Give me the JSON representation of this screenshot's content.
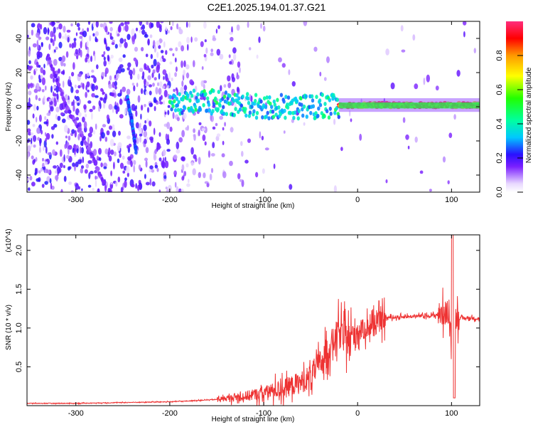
{
  "title": "C2E1.2025.194.01.37.G21",
  "chart_data": [
    {
      "type": "heatmap",
      "xlabel": "Height of straight line (km)",
      "ylabel": "Frequency (Hz)",
      "xlim": [
        -352,
        130
      ],
      "ylim": [
        -50,
        50
      ],
      "xticks": [
        -300,
        -200,
        -100,
        0,
        100
      ],
      "yticks": [
        -40,
        -20,
        0,
        20,
        40
      ],
      "colorbar": {
        "label": "Normalized spectral amplitude",
        "range": [
          0,
          1
        ],
        "ticks": [
          0.0,
          0.2,
          0.4,
          0.6,
          0.8
        ],
        "tick_labels": [
          "0.0",
          "0.2",
          "0.4",
          "0.6",
          "0.8"
        ]
      },
      "tracks": [
        {
          "x": [
            -330,
            -310,
            -290,
            -270
          ],
          "y": [
            30,
            0,
            -20,
            -45
          ],
          "amplitude": 0.15
        },
        {
          "x": [
            -245,
            -240,
            -236
          ],
          "y": [
            5,
            -10,
            -26
          ],
          "amplitude": 0.25
        },
        {
          "x": [
            -200,
            -150,
            -100,
            -50,
            -20
          ],
          "y": [
            2,
            3,
            0,
            0,
            1
          ],
          "amplitude": 0.35
        },
        {
          "x": [
            -20,
            0,
            50,
            100,
            130
          ],
          "y": [
            1,
            1,
            1,
            1,
            1
          ],
          "amplitude": 0.85
        }
      ]
    },
    {
      "type": "line",
      "xlabel": "Height of straight line (km)",
      "ylabel": "SNR (10 * v/v)",
      "y_multiplier": "(x10^4)",
      "xlim": [
        -352,
        130
      ],
      "ylim": [
        0,
        2.2
      ],
      "xticks": [
        -300,
        -200,
        -100,
        0,
        100
      ],
      "yticks": [
        0.5,
        1.0,
        1.5,
        2.0
      ],
      "yticklabels": [
        "0.5",
        "1.0",
        "1.5",
        "2.0"
      ],
      "series": [
        {
          "color": "#ee3333",
          "x": [
            -352,
            -300,
            -250,
            -200,
            -180,
            -150,
            -120,
            -100,
            -80,
            -60,
            -50,
            -40,
            -30,
            -20,
            -10,
            0,
            10,
            20,
            30,
            40,
            60,
            80,
            90,
            95,
            100,
            103,
            105,
            110,
            120,
            130
          ],
          "y": [
            0.03,
            0.03,
            0.04,
            0.05,
            0.06,
            0.08,
            0.12,
            0.16,
            0.22,
            0.3,
            0.38,
            0.55,
            0.75,
            0.95,
            0.85,
            0.95,
            1.0,
            1.05,
            1.13,
            1.14,
            1.15,
            1.16,
            1.18,
            1.2,
            0.9,
            1.12,
            1.14,
            1.12,
            1.13,
            1.12
          ]
        }
      ]
    }
  ]
}
